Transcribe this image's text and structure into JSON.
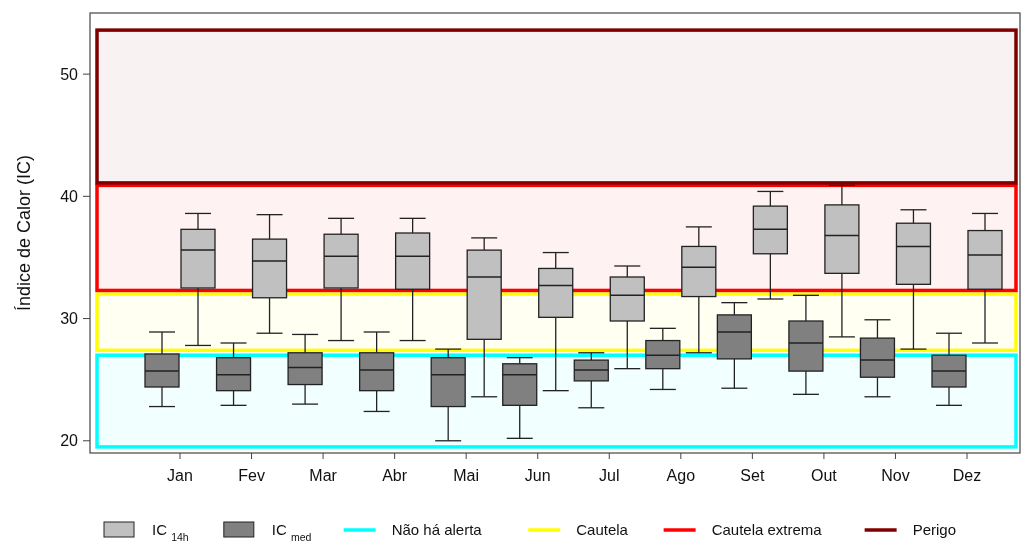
{
  "chart_data": {
    "type": "box",
    "ylabel": "Índice de Calor (IC)",
    "categories": [
      "Jan",
      "Fev",
      "Mar",
      "Abr",
      "Mai",
      "Jun",
      "Jul",
      "Ago",
      "Set",
      "Out",
      "Nov",
      "Dez"
    ],
    "ylim": [
      19,
      55
    ],
    "yticks": [
      20,
      30,
      40,
      50
    ],
    "grid": false,
    "legend": "bottom",
    "series": [
      {
        "name": "IC $_{med}$",
        "color": "#808080",
        "boxes": [
          {
            "low": 22.8,
            "q1": 24.4,
            "median": 25.7,
            "q3": 27.1,
            "high": 28.9
          },
          {
            "low": 22.9,
            "q1": 24.1,
            "median": 25.4,
            "q3": 26.8,
            "high": 28.0
          },
          {
            "low": 23.0,
            "q1": 24.6,
            "median": 26.0,
            "q3": 27.2,
            "high": 28.7
          },
          {
            "low": 22.4,
            "q1": 24.1,
            "median": 25.8,
            "q3": 27.2,
            "high": 28.9
          },
          {
            "low": 20.0,
            "q1": 22.8,
            "median": 25.4,
            "q3": 26.8,
            "high": 27.5
          },
          {
            "low": 20.2,
            "q1": 22.9,
            "median": 25.4,
            "q3": 26.3,
            "high": 26.8
          },
          {
            "low": 22.7,
            "q1": 24.9,
            "median": 25.8,
            "q3": 26.6,
            "high": 27.2
          },
          {
            "low": 24.2,
            "q1": 25.9,
            "median": 27.0,
            "q3": 28.2,
            "high": 29.2
          },
          {
            "low": 24.3,
            "q1": 26.7,
            "median": 28.9,
            "q3": 30.3,
            "high": 31.3
          },
          {
            "low": 23.8,
            "q1": 25.7,
            "median": 28.0,
            "q3": 29.8,
            "high": 31.9
          },
          {
            "low": 23.6,
            "q1": 25.2,
            "median": 26.6,
            "q3": 28.4,
            "high": 29.9
          },
          {
            "low": 22.9,
            "q1": 24.4,
            "median": 25.7,
            "q3": 27.0,
            "high": 28.8
          }
        ]
      },
      {
        "name": "IC $_{14h}$",
        "color": "#c0c0c0",
        "boxes": [
          {
            "low": 27.8,
            "q1": 32.5,
            "median": 35.6,
            "q3": 37.3,
            "high": 38.6
          },
          {
            "low": 28.8,
            "q1": 31.7,
            "median": 34.7,
            "q3": 36.5,
            "high": 38.5
          },
          {
            "low": 28.2,
            "q1": 32.5,
            "median": 35.1,
            "q3": 36.9,
            "high": 38.2
          },
          {
            "low": 28.2,
            "q1": 32.4,
            "median": 35.1,
            "q3": 37.0,
            "high": 38.2
          },
          {
            "low": 23.6,
            "q1": 28.3,
            "median": 33.4,
            "q3": 35.6,
            "high": 36.6
          },
          {
            "low": 24.1,
            "q1": 30.1,
            "median": 32.7,
            "q3": 34.1,
            "high": 35.4
          },
          {
            "low": 25.9,
            "q1": 29.8,
            "median": 31.9,
            "q3": 33.4,
            "high": 34.3
          },
          {
            "low": 27.2,
            "q1": 31.8,
            "median": 34.2,
            "q3": 35.9,
            "high": 37.5
          },
          {
            "low": 31.6,
            "q1": 35.3,
            "median": 37.3,
            "q3": 39.2,
            "high": 40.4
          },
          {
            "low": 28.5,
            "q1": 33.7,
            "median": 36.8,
            "q3": 39.3,
            "high": 40.9
          },
          {
            "low": 27.5,
            "q1": 32.8,
            "median": 35.9,
            "q3": 37.8,
            "high": 38.9
          },
          {
            "low": 28.0,
            "q1": 32.4,
            "median": 35.2,
            "q3": 37.2,
            "high": 38.6
          }
        ]
      }
    ],
    "bands": [
      {
        "axis": "y",
        "from": 19.5,
        "to": 27.0,
        "label": "Não há alerta",
        "color": "#00ffff"
      },
      {
        "axis": "y",
        "from": 27.4,
        "to": 32.0,
        "label": "Cautela",
        "color": "#ffff00"
      },
      {
        "axis": "y",
        "from": 32.3,
        "to": 40.9,
        "label": "Cautela extrema",
        "color": "#ff0000"
      },
      {
        "axis": "y",
        "from": 41.1,
        "to": 53.6,
        "label": "Perigo",
        "color": "#800000"
      }
    ]
  }
}
